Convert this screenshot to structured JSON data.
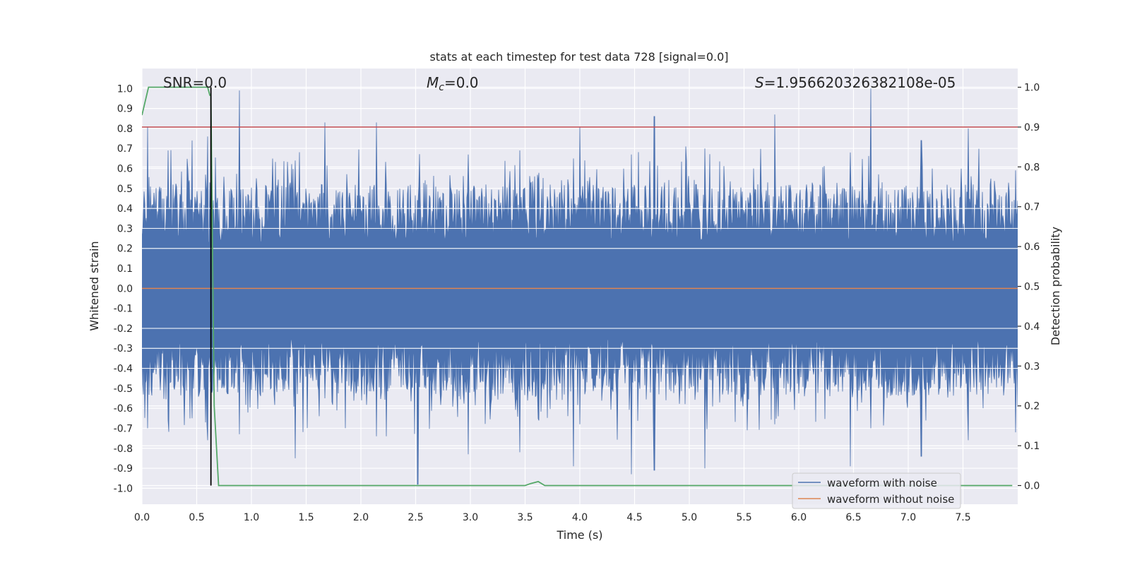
{
  "chart_data": {
    "type": "line",
    "title": "stats at each timestep for test data 728 [signal=0.0]",
    "xlabel": "Time (s)",
    "ylabel": "Whitened strain",
    "ylabel_right": "Detection probability",
    "xlim": [
      0.0,
      8.0
    ],
    "ylim": [
      -1.08,
      1.1
    ],
    "ylim_right": [
      -0.047,
      1.047
    ],
    "x_ticks": [
      0.0,
      0.5,
      1.0,
      1.5,
      2.0,
      2.5,
      3.0,
      3.5,
      4.0,
      4.5,
      5.0,
      5.5,
      6.0,
      6.5,
      7.0,
      7.5
    ],
    "x_tick_labels": [
      "0.0",
      "0.5",
      "1.0",
      "1.5",
      "2.0",
      "2.5",
      "3.0",
      "3.5",
      "4.0",
      "4.5",
      "5.0",
      "5.5",
      "6.0",
      "6.5",
      "7.0",
      "7.5"
    ],
    "y_ticks": [
      1.0,
      0.9,
      0.8,
      0.7,
      0.6,
      0.5,
      0.4,
      0.3,
      0.2,
      0.1,
      0.0,
      -0.1,
      -0.2,
      -0.3,
      -0.4,
      -0.5,
      -0.6,
      -0.7,
      -0.8,
      -0.9,
      -1.0
    ],
    "y_tick_labels": [
      "1.0",
      "0.9",
      "0.8",
      "0.7",
      "0.6",
      "0.5",
      "0.4",
      "0.3",
      "0.2",
      "0.1",
      "0.0",
      "-0.1",
      "-0.2",
      "-0.3",
      "-0.4",
      "-0.5",
      "-0.6",
      "-0.7",
      "-0.8",
      "-0.9",
      "-1.0"
    ],
    "y_right_ticks": [
      1.0,
      0.9,
      0.8,
      0.7,
      0.6,
      0.5,
      0.4,
      0.3,
      0.2,
      0.1,
      0.0
    ],
    "y_right_tick_labels": [
      "1.0",
      "0.9",
      "0.8",
      "0.7",
      "0.6",
      "0.5",
      "0.4",
      "0.3",
      "0.2",
      "0.1",
      "0.0"
    ],
    "annotations": {
      "snr": "SNR=0.0",
      "mc_symbol": "M",
      "mc_sub": "c",
      "mc_value": "=0.0",
      "s_symbol": "S",
      "s_value": "=1.956620326382108e-05"
    },
    "threshold": 0.9,
    "marker_time": 0.63,
    "series": [
      {
        "name": "waveform with noise",
        "color": "#4c72b0",
        "axis": "left",
        "envelope_peaks": [
          {
            "t": 0.05,
            "max": 0.81,
            "min": -0.7
          },
          {
            "t": 0.24,
            "max": 0.69,
            "min": -0.66
          },
          {
            "t": 0.46,
            "max": 0.74,
            "min": -0.65
          },
          {
            "t": 0.6,
            "max": 0.76,
            "min": -0.76
          },
          {
            "t": 0.89,
            "max": 0.99,
            "min": -0.73
          },
          {
            "t": 1.4,
            "max": 0.64,
            "min": -0.85
          },
          {
            "t": 1.67,
            "max": 0.83,
            "min": -0.55
          },
          {
            "t": 2.14,
            "max": 0.83,
            "min": -0.74
          },
          {
            "t": 2.52,
            "max": 0.42,
            "min": -0.98
          },
          {
            "t": 2.98,
            "max": 0.67,
            "min": -0.83
          },
          {
            "t": 3.45,
            "max": 0.69,
            "min": -0.82
          },
          {
            "t": 3.94,
            "max": 0.65,
            "min": -0.89
          },
          {
            "t": 4.0,
            "max": 0.81,
            "min": -0.68
          },
          {
            "t": 4.47,
            "max": 0.67,
            "min": -0.93
          },
          {
            "t": 4.68,
            "max": 0.86,
            "min": -0.91
          },
          {
            "t": 5.14,
            "max": 0.7,
            "min": -0.9
          },
          {
            "t": 5.78,
            "max": 0.87,
            "min": -0.68
          },
          {
            "t": 6.47,
            "max": 0.68,
            "min": -0.89
          },
          {
            "t": 6.66,
            "max": 1.0,
            "min": -0.7
          },
          {
            "t": 7.12,
            "max": 0.74,
            "min": -0.84
          },
          {
            "t": 7.55,
            "max": 0.8,
            "min": -0.76
          },
          {
            "t": 7.98,
            "max": 0.59,
            "min": -0.72
          }
        ]
      },
      {
        "name": "waveform without noise",
        "color": "#dd8452",
        "axis": "left",
        "x": [
          0.0,
          8.0
        ],
        "y": [
          0.0,
          0.0
        ]
      },
      {
        "name": "detection probability",
        "color": "#55a868",
        "axis": "right",
        "x": [
          0.0,
          0.06,
          0.1,
          0.55,
          0.6,
          0.62,
          0.63,
          0.66,
          0.7,
          3.5,
          3.55,
          3.62,
          3.68,
          7.95
        ],
        "y": [
          0.93,
          1.0,
          1.0,
          1.0,
          1.0,
          0.98,
          0.98,
          0.2,
          0.0,
          0.0,
          0.005,
          0.01,
          0.0,
          0.0
        ]
      }
    ],
    "legend": {
      "placement": "lower-right",
      "entries": [
        {
          "label": "waveform with noise",
          "color": "#4c72b0"
        },
        {
          "label": "waveform without noise",
          "color": "#dd8452"
        }
      ]
    },
    "colors": {
      "axes_bg": "#eaeaf2",
      "grid": "#ffffff",
      "threshold": "#c44e52",
      "marker": "#000000"
    }
  }
}
